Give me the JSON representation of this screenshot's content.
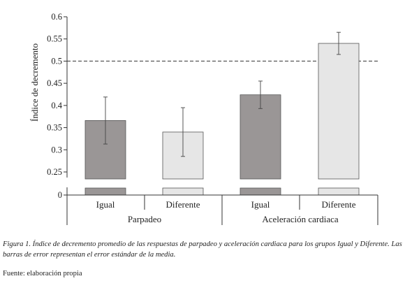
{
  "chart_data": {
    "type": "bar",
    "ylabel": "Índice de decremento",
    "y_ticks": [
      "0",
      "0.25",
      "0.3",
      "0.35",
      "0.4",
      "0.45",
      "0.5",
      "0.55",
      "0.6"
    ],
    "ylim": [
      0.25,
      0.6
    ],
    "axis_break": true,
    "reference_line": 0.5,
    "groups": [
      "Parpadeo",
      "Aceleración cardiaca"
    ],
    "categories": [
      "Igual",
      "Diferente",
      "Igual",
      "Diferente"
    ],
    "values": [
      0.366,
      0.34,
      0.424,
      0.54
    ],
    "error": [
      0.053,
      0.055,
      0.031,
      0.025
    ],
    "colors": [
      "#9a9696",
      "#e6e6e6",
      "#9a9696",
      "#e6e6e6"
    ],
    "grid": false
  },
  "caption": {
    "figure_label": "Figura 1.",
    "text": " Índice de decremento promedio de las respuestas de parpadeo y aceleración cardiaca para los grupos Igual y Diferente. Las barras de error representan el error estándar de la media."
  },
  "source": "Fuente: elaboración propia"
}
